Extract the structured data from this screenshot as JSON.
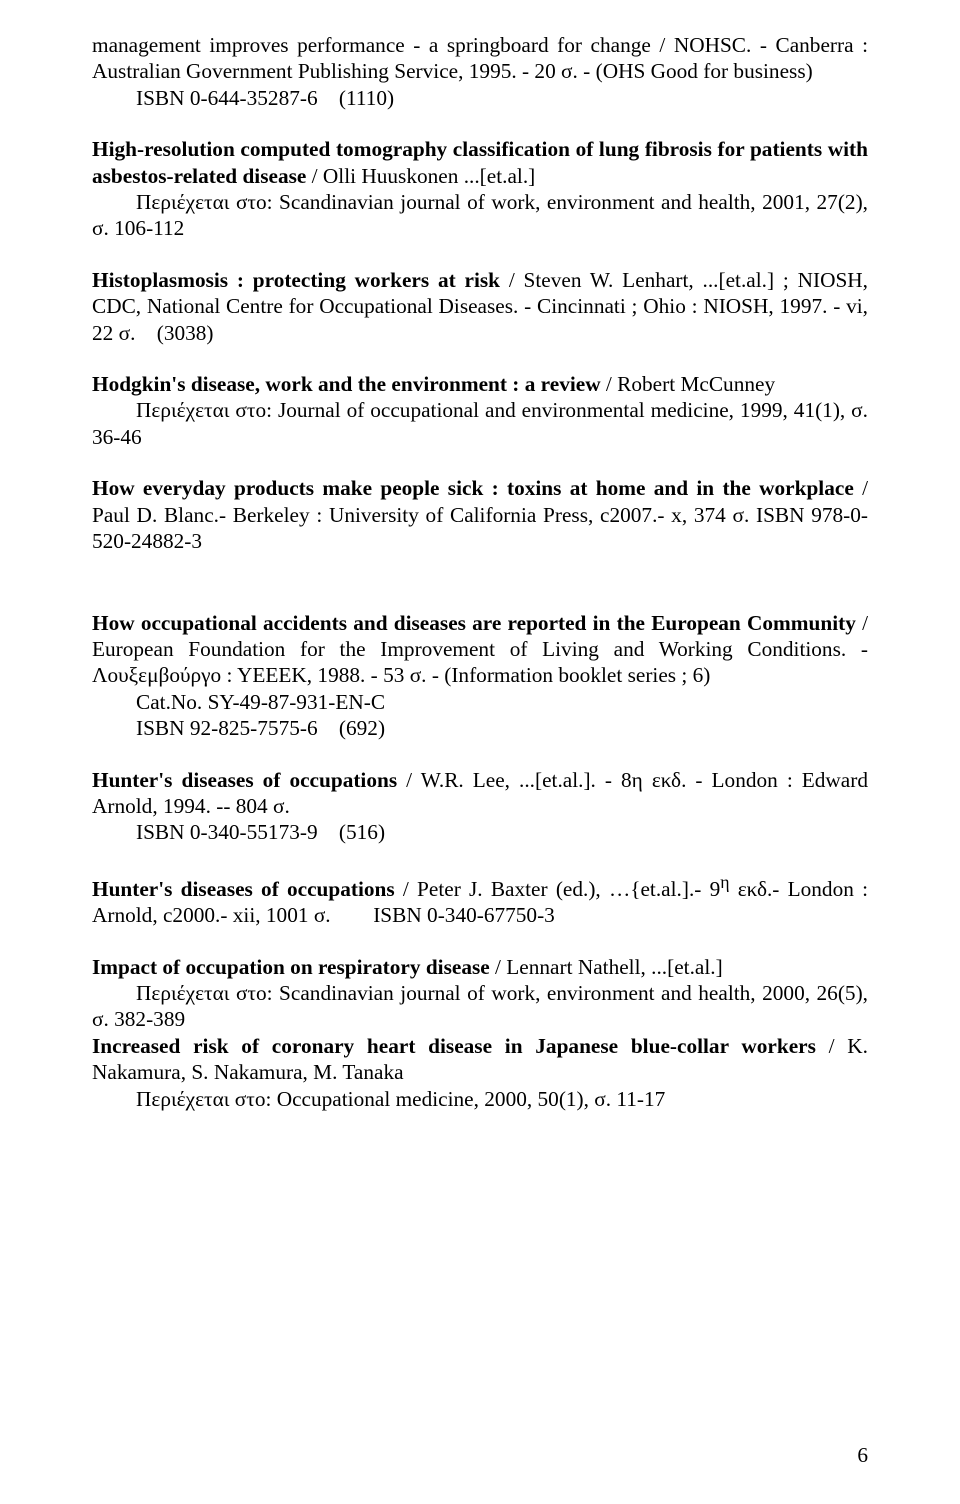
{
  "page_number": "6",
  "entries": [
    {
      "html": "management improves performance - a springboard for change / NOHSC. - Canberra : Australian Government Publishing Service, 1995. - 20 σ. - (OHS Good for business)",
      "indent1": "ISBN 0-644-35287-6 (1110)",
      "extra_gap_after": false
    },
    {
      "html": "<span class=\"b\">High-resolution computed tomography classification of lung fibrosis for patients with asbestos-related disease</span> / Olli Huuskonen ...[et.al.]",
      "indent1": "Περιέχεται στο: Scandinavian journal of work, environment and health, 2001, 27(2), σ. 106-112"
    },
    {
      "html": "<span class=\"b\">Histoplasmosis : protecting workers at risk</span> / Steven W. Lenhart, ...[et.al.] ; NIOSH, CDC, National Centre for Occupational Diseases. - Cincinnati ; Ohio : NIOSH, 1997. - vi, 22 σ. (3038)"
    },
    {
      "html": "<span class=\"b\">Hodgkin's disease, work and the environment : a review</span> / Robert McCunney",
      "indent1": "Περιέχεται στο: Journal of occupational and environmental medicine, 1999, 41(1), σ. 36-46"
    },
    {
      "html": "<span class=\"b\">How everyday products make people sick : toxins at home and in the workplace</span> / Paul D. Blanc.- Berkeley : University of California Press, c2007.- x, 374 σ. ISBN 978-0-520-24882-3",
      "extra_gap_after": true
    },
    {
      "html": "<span class=\"b\">How occupational accidents and diseases are reported in the European Community</span> / European Foundation for the Improvement of Living and Working Conditions. - Λουξεμβούργο : ΥΕΕΕΚ, 1988. - 53 σ. - (Information booklet series ; 6)",
      "indent1": "Cat.No. SY-49-87-931-EN-C",
      "indent2": "ISBN 92-825-7575-6 (692)"
    },
    {
      "html": "<span class=\"b\">Hunter's diseases of occupations</span> / W.R. Lee, ...[et.al.]. - 8η εκδ. - London : Edward Arnold, 1994. -- 804 σ.",
      "indent1": "ISBN 0-340-55173-9 (516)"
    },
    {
      "html": "<span class=\"b\">Hunter's diseases of occupations</span> / Peter J. Baxter (ed.), …{et.al.].- 9<sup>η</sup> εκδ.- London : Arnold, c2000.- xii, 1001 σ.  ISBN 0-340-67750-3"
    },
    {
      "html": "<span class=\"b\">Impact of occupation on respiratory disease</span> / Lennart Nathell, ...[et.al.]",
      "indent1": "Περιέχεται στο: Scandinavian journal of work, environment and health, 2000, 26(5), σ. 382-389",
      "tight": true
    },
    {
      "html": "<span class=\"b\">Increased risk of coronary heart disease in Japanese blue-collar workers</span> / K. Nakamura, S. Nakamura, M. Tanaka",
      "indent1": "Περιέχεται στο: Occupational medicine, 2000, 50(1), σ. 11-17"
    }
  ]
}
